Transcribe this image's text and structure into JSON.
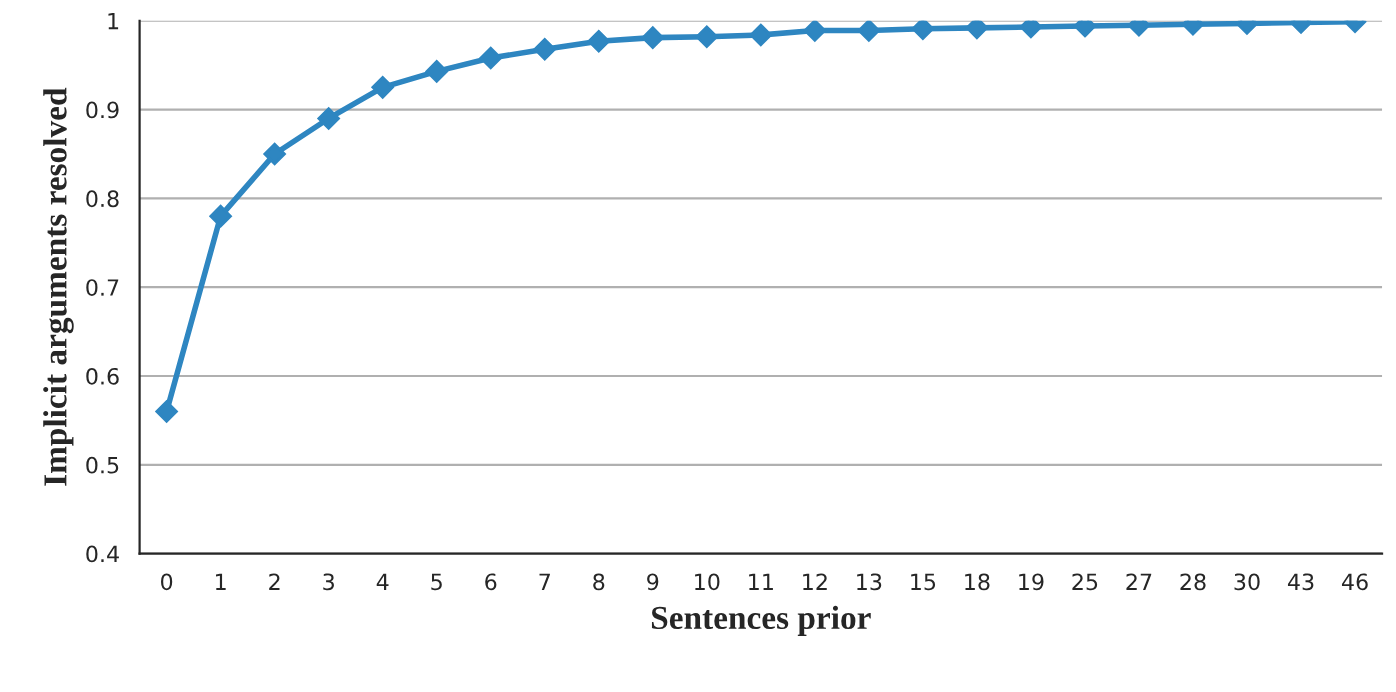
{
  "chart_data": {
    "type": "line",
    "xlabel": "Sentences prior",
    "ylabel": "Implicit arguments resolved",
    "categories": [
      "0",
      "1",
      "2",
      "3",
      "4",
      "5",
      "6",
      "7",
      "8",
      "9",
      "10",
      "11",
      "12",
      "13",
      "15",
      "18",
      "19",
      "25",
      "27",
      "28",
      "30",
      "43",
      "46"
    ],
    "series": [
      {
        "color": "#2e86c1",
        "values": [
          0.56,
          0.78,
          0.85,
          0.89,
          0.925,
          0.943,
          0.958,
          0.968,
          0.977,
          0.981,
          0.982,
          0.984,
          0.989,
          0.989,
          0.991,
          0.992,
          0.993,
          0.994,
          0.995,
          0.996,
          0.997,
          0.998,
          0.999
        ]
      }
    ],
    "ylim": [
      0.4,
      1
    ],
    "yticks": [
      0.4,
      0.5,
      0.6,
      0.7,
      0.8,
      0.9,
      1
    ],
    "grid": "y",
    "marker": "diamond",
    "line_style": "solid"
  }
}
